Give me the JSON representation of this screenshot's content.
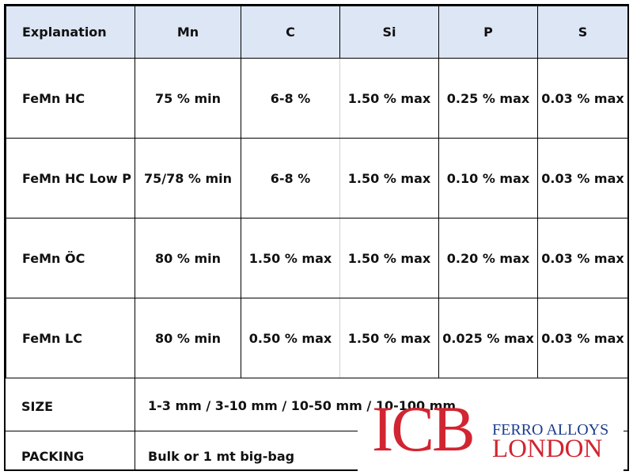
{
  "table": {
    "headers": [
      "Explanation",
      "Mn",
      "C",
      "Si",
      "P",
      "S"
    ],
    "rows": [
      [
        "FeMn HC",
        "75 % min",
        "6-8 %",
        "1.50 % max",
        "0.25 % max",
        "0.03 % max"
      ],
      [
        "FeMn HC Low P",
        "75/78 % min",
        "6-8 %",
        "1.50 % max",
        "0.10 % max",
        "0.03 % max"
      ],
      [
        "FeMn ÖC",
        "80 % min",
        "1.50 % max",
        "1.50 % max",
        "0.20 % max",
        "0.03 % max"
      ],
      [
        "FeMn LC",
        "80 % min",
        "0.50 % max",
        "1.50 % max",
        "0.025 % max",
        "0.03 % max"
      ]
    ]
  },
  "size": {
    "label": "SIZE",
    "value": "1-3 mm / 3-10 mm / 10-50 mm / 10-100 mm"
  },
  "packing": {
    "label": "PACKING",
    "value": "Bulk or 1 mt big-bag"
  },
  "logo": {
    "icb": "ICB",
    "ferro": "FERRO ALLOYS",
    "london": "LONDON",
    "red": "#d12531",
    "blue": "#1c3c8c"
  },
  "colors": {
    "header_bg": "#dce6f4"
  }
}
